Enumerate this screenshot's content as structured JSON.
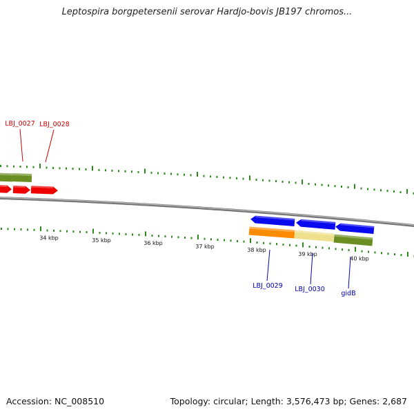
{
  "title": "Leptospira borgpetersenii serovar Hardjo-bovis JB197 chromos...",
  "footer": {
    "accession": "Accession: NC_008510",
    "summary": "Topology: circular; Length: 3,576,473 bp; Genes: 2,687"
  },
  "colors": {
    "red": "#ee0000",
    "blue": "#0a0aee",
    "orange": "#ff8c00",
    "khaki": "#eee08c",
    "olive": "#6b8e23",
    "tick_green": "#2a8a1a",
    "label_red": "#cc0000",
    "label_blue": "#0000bb",
    "backbone": "#888888"
  },
  "kbp_labels": [
    "34 kbp",
    "35 kbp",
    "36 kbp",
    "37 kbp",
    "38 kbp",
    "39 kbp",
    "40 kbp"
  ],
  "gene_labels": [
    {
      "text": "LBJ_0027",
      "color": "red"
    },
    {
      "text": "LBJ_0028",
      "color": "red"
    },
    {
      "text": "LBJ_0029",
      "color": "blue"
    },
    {
      "text": "LBJ_0030",
      "color": "blue"
    },
    {
      "text": "gidB",
      "color": "blue"
    }
  ]
}
